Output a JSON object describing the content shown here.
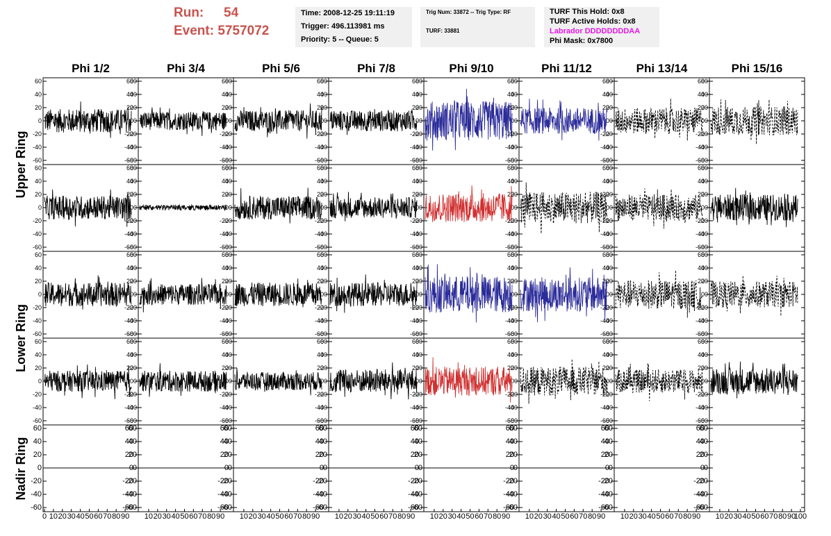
{
  "header": {
    "run_label": "Run:",
    "run_value": "54",
    "event_label": "Event:",
    "event_value": "5757072"
  },
  "info_time": {
    "time": "Time: 2008-12-25 19:11:19",
    "trigger": "Trigger: 496.113981 ms",
    "priority": "Priority: 5 -- Queue: 5"
  },
  "info_trig": {
    "trig": "Trig Num: 33872 -- Trig Type: RF",
    "turf": "TURF: 33881"
  },
  "info_turf": {
    "hold": "TURF This Hold: 0x8",
    "active": "TURF Active Holds: 0x8",
    "labrador": "Labrador DDDDDDDDAA",
    "phimask": "Phi Mask: 0x7800"
  },
  "colors": {
    "header_red": "#c9524d",
    "labrador_pink": "#e616e6",
    "info_bg": "#f0f0f0",
    "trace_black": "#000000",
    "trace_blue": "#2b2b9a",
    "trace_red": "#d03030"
  },
  "chart_data": {
    "type": "line",
    "columns": [
      "Phi 1/2",
      "Phi 3/4",
      "Phi 5/6",
      "Phi 7/8",
      "Phi 9/10",
      "Phi 11/12",
      "Phi 13/14",
      "Phi 15/16"
    ],
    "rows": [
      "Upper Ring",
      "Upper Ring",
      "Lower Ring",
      "Lower Ring",
      "Nadir Ring"
    ],
    "row_labels": [
      "Upper Ring",
      "Lower Ring",
      "Nadir Ring"
    ],
    "ylim": [
      -60,
      60
    ],
    "yticks": [
      -60,
      -40,
      -20,
      0,
      20,
      40,
      60
    ],
    "xlim": [
      0,
      100
    ],
    "xtick_labels": [
      "0",
      "10",
      "20",
      "30",
      "40",
      "50",
      "60",
      "70",
      "80",
      "90",
      "100"
    ],
    "panels_style": [
      [
        "solid",
        "solid",
        "solid",
        "solid",
        "blue",
        "blue",
        "dashed",
        "dashed"
      ],
      [
        "solid",
        "flat",
        "solid",
        "solid",
        "red",
        "dashed",
        "dashed",
        "solid"
      ],
      [
        "solid",
        "solid",
        "solid",
        "solid",
        "blue",
        "blue",
        "dashed",
        "dashed"
      ],
      [
        "solid",
        "solid",
        "solid",
        "solid",
        "red",
        "dashed",
        "dashed",
        "solid"
      ],
      [
        "zero",
        "zero",
        "zero",
        "zero",
        "zero",
        "zero",
        "zero",
        "none"
      ]
    ],
    "amplitude": [
      [
        18,
        14,
        16,
        16,
        30,
        20,
        20,
        22
      ],
      [
        18,
        4,
        18,
        16,
        22,
        24,
        20,
        20
      ],
      [
        18,
        16,
        18,
        18,
        28,
        26,
        22,
        20
      ],
      [
        16,
        16,
        14,
        18,
        22,
        22,
        18,
        20
      ],
      [
        0,
        0,
        0,
        0,
        0,
        0,
        0,
        0
      ]
    ]
  }
}
